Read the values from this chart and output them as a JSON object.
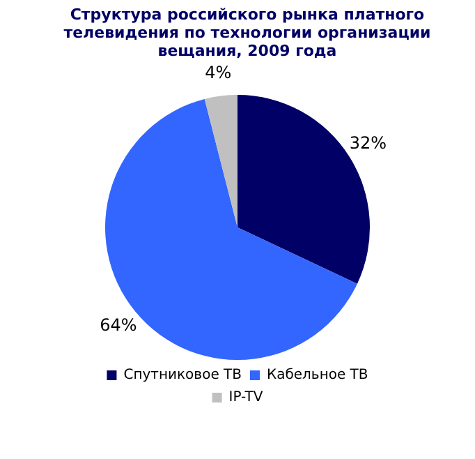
{
  "chart_data": {
    "type": "pie",
    "title": "Структура российского рынка платного телевидения по технологии организации вещания, 2009 года",
    "categories": [
      "Спутниковое ТВ",
      "Кабельное ТВ",
      "IP-TV"
    ],
    "values": [
      32,
      64,
      4
    ],
    "colors": [
      "#000066",
      "#3366ff",
      "#c0c0c0"
    ],
    "value_labels": [
      "32%",
      "64%",
      "4%"
    ],
    "legend": "bottom"
  }
}
